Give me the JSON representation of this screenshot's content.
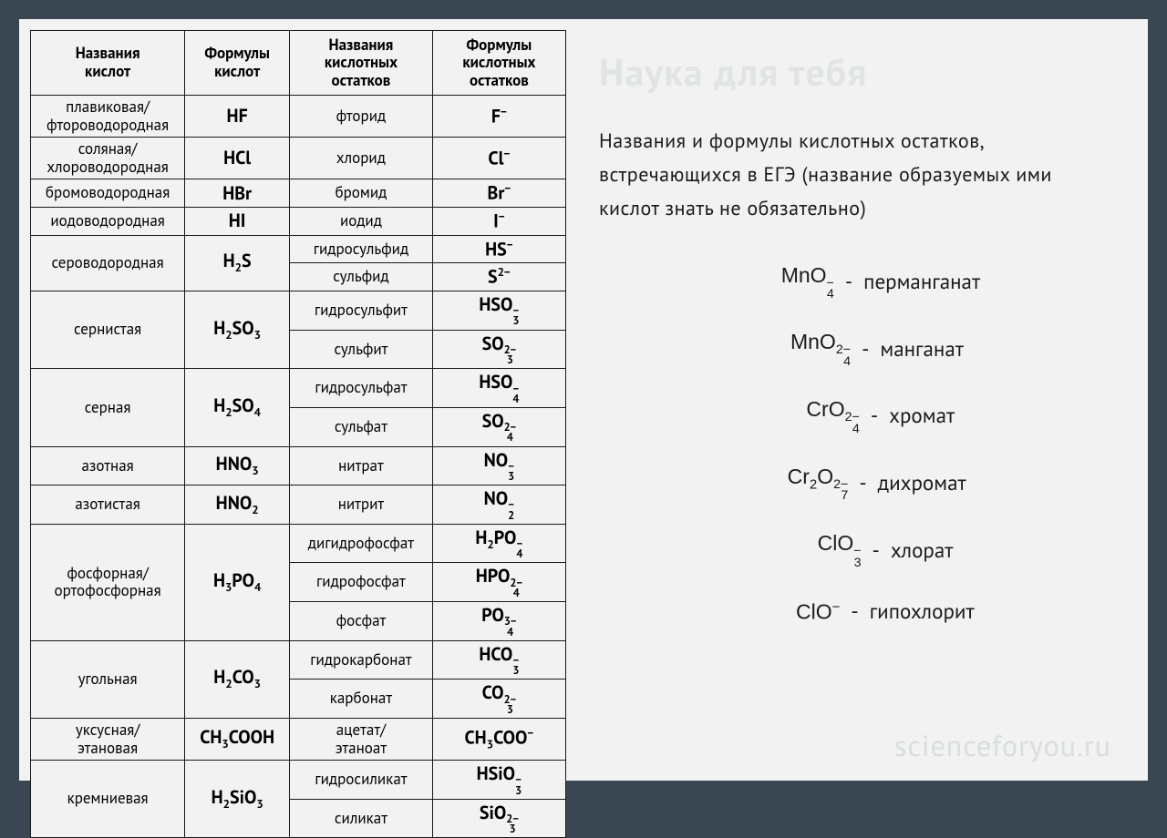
{
  "colors": {
    "bg": "#3a4651",
    "card": "#f2f2f2",
    "text": "#1a1a1a",
    "border": "#1a1a1a",
    "watermark": "rgba(120,150,150,0.16)"
  },
  "watermark": {
    "top": "Наука для тебя",
    "bottom": "scienceforyou.ru"
  },
  "table": {
    "headers": [
      "Названия кислот",
      "Формулы кислот",
      "Названия кислотных остатков",
      "Формулы кислотных остатков"
    ],
    "rows": [
      {
        "acid_name": "плавиковая/ фтороводородная",
        "acid_formula": "HF",
        "residues": [
          {
            "name": "фторид",
            "formula_html": "F<span class='sup'>−</span>"
          }
        ]
      },
      {
        "acid_name": "соляная/ хлороводородная",
        "acid_formula": "HCl",
        "residues": [
          {
            "name": "хлорид",
            "formula_html": "Cl<span class='sup'>−</span>"
          }
        ]
      },
      {
        "acid_name": "бромоводородная",
        "acid_formula": "HBr",
        "residues": [
          {
            "name": "бромид",
            "formula_html": "Br<span class='sup'>−</span>"
          }
        ]
      },
      {
        "acid_name": "иодоводородная",
        "acid_formula": "HI",
        "residues": [
          {
            "name": "иодид",
            "formula_html": "I<span class='sup'>−</span>"
          }
        ]
      },
      {
        "acid_name": "сероводородная",
        "acid_formula_html": "H<span class='sub'>2</span>S",
        "residues": [
          {
            "name": "гидросульфид",
            "formula_html": "HS<span class='sup'>−</span>"
          },
          {
            "name": "сульфид",
            "formula_html": "S<span class='sup'>2−</span>"
          }
        ]
      },
      {
        "acid_name": "сернистая",
        "acid_formula_html": "H<span class='sub'>2</span>SO<span class='sub'>3</span>",
        "residues": [
          {
            "name": "гидросульфит",
            "formula_html": "HSO<span class='supsub'><span>−</span><span>3</span></span>"
          },
          {
            "name": "сульфит",
            "formula_html": "SO<span class='supsub'><span>2−</span><span>3</span></span>"
          }
        ]
      },
      {
        "acid_name": "серная",
        "acid_formula_html": "H<span class='sub'>2</span>SO<span class='sub'>4</span>",
        "residues": [
          {
            "name": "гидросульфат",
            "formula_html": "HSO<span class='supsub'><span>−</span><span>4</span></span>"
          },
          {
            "name": "сульфат",
            "formula_html": "SO<span class='supsub'><span>2−</span><span>4</span></span>"
          }
        ]
      },
      {
        "acid_name": "азотная",
        "acid_formula_html": "HNO<span class='sub'>3</span>",
        "residues": [
          {
            "name": "нитрат",
            "formula_html": "NO<span class='supsub'><span>−</span><span>3</span></span>"
          }
        ]
      },
      {
        "acid_name": "азотистая",
        "acid_formula_html": "HNO<span class='sub'>2</span>",
        "residues": [
          {
            "name": "нитрит",
            "formula_html": "NO<span class='supsub'><span>−</span><span>2</span></span>"
          }
        ]
      },
      {
        "acid_name": "фосфорная/ ортофосфорная",
        "acid_formula_html": "H<span class='sub'>3</span>PO<span class='sub'>4</span>",
        "residues": [
          {
            "name": "дигидрофосфат",
            "formula_html": "H<span class='sub'>2</span>PO<span class='supsub'><span>−</span><span>4</span></span>"
          },
          {
            "name": "гидрофосфат",
            "formula_html": "HPO<span class='supsub'><span>2−</span><span>4</span></span>"
          },
          {
            "name": "фосфат",
            "formula_html": "PO<span class='supsub'><span>3−</span><span>4</span></span>"
          }
        ]
      },
      {
        "acid_name": "угольная",
        "acid_formula_html": "H<span class='sub'>2</span>CO<span class='sub'>3</span>",
        "residues": [
          {
            "name": "гидрокарбонат",
            "formula_html": "HCO<span class='supsub'><span>−</span><span>3</span></span>"
          },
          {
            "name": "карбонат",
            "formula_html": "CO<span class='supsub'><span>2−</span><span>3</span></span>"
          }
        ]
      },
      {
        "acid_name": "уксусная/ этановая",
        "acid_formula_html": "CH<span class='sub'>3</span>COOH",
        "residues": [
          {
            "name": "ацетат/ этаноат",
            "formula_html": "CH<span class='sub'>3</span>COO<span class='sup'>−</span>"
          }
        ]
      },
      {
        "acid_name": "кремниевая",
        "acid_formula_html": "H<span class='sub'>2</span>SiO<span class='sub'>3</span>",
        "residues": [
          {
            "name": "гидросиликат",
            "formula_html": "HSiO<span class='supsub'><span>−</span><span>3</span></span>"
          },
          {
            "name": "силикат",
            "formula_html": "SiO<span class='supsub'><span>2−</span><span>3</span></span>"
          }
        ]
      }
    ]
  },
  "right": {
    "intro": "Названия и формулы кислотных остатков, встречающихся в ЕГЭ (название образуемых ими кислот знать не обязательно)",
    "ions": [
      {
        "formula_html": "MnO<span class='supsub'><span>−</span><span>4</span></span>",
        "label": "перманганат"
      },
      {
        "formula_html": "MnO<span class='supsub'><span>2−</span><span>4</span></span>",
        "label": "манганат"
      },
      {
        "formula_html": "CrO<span class='supsub'><span>2−</span><span>4</span></span>",
        "label": "хромат"
      },
      {
        "formula_html": "Cr<span class='sub'>2</span>O<span class='supsub'><span>2−</span><span>7</span></span>",
        "label": "дихромат"
      },
      {
        "formula_html": "ClO<span class='supsub'><span>−</span><span>3</span></span>",
        "label": "хлорат"
      },
      {
        "formula_html": "ClO<span class='sup'>−</span>",
        "label": "гипохлорит"
      }
    ]
  }
}
